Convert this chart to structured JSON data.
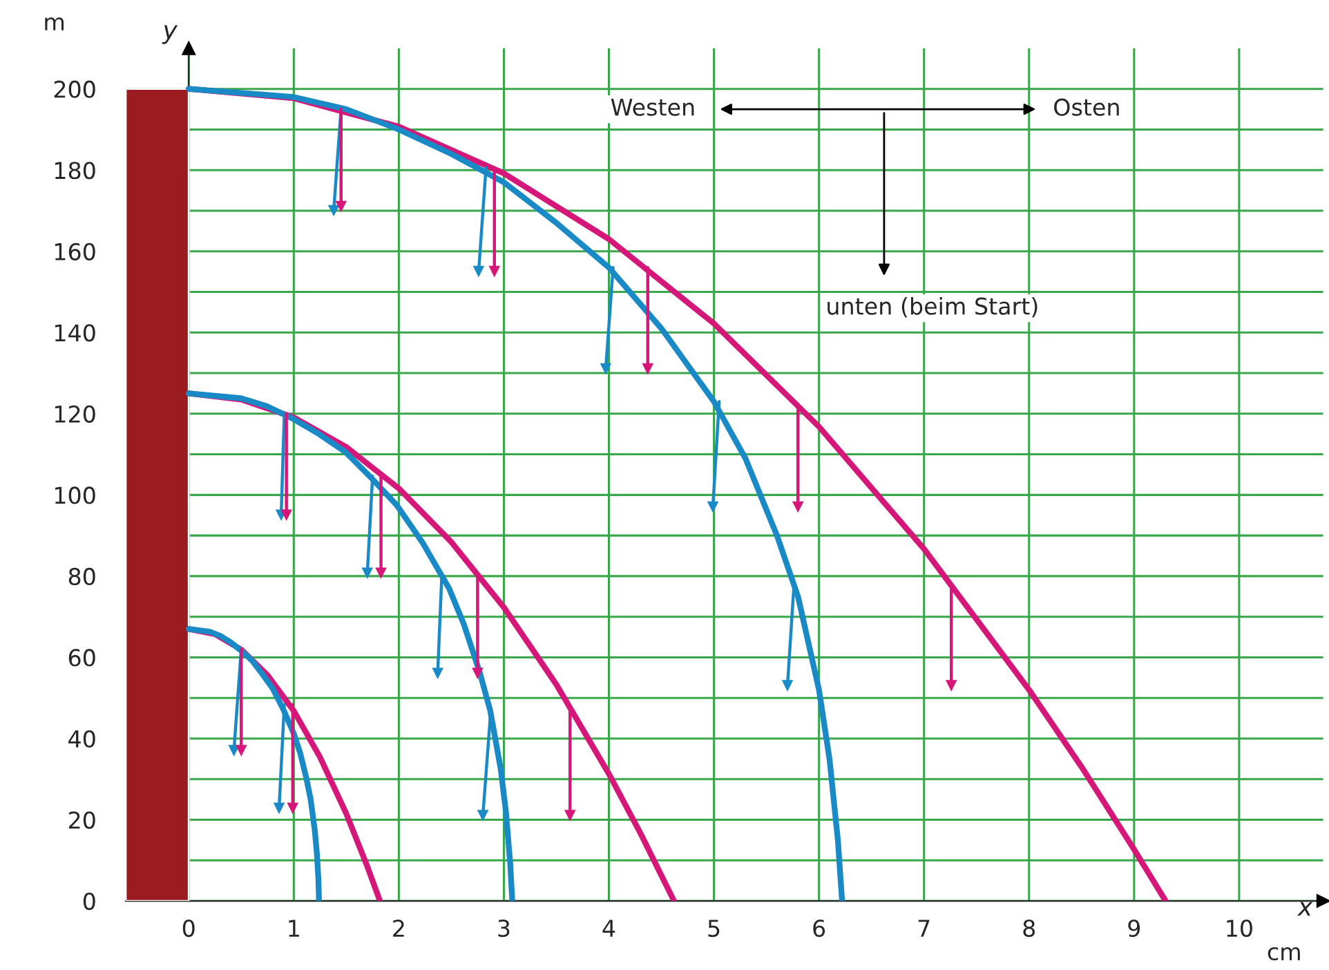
{
  "chart_data": {
    "type": "line",
    "xlabel": "x",
    "ylabel": "y",
    "xlim": [
      -0.6,
      10.8
    ],
    "ylim": [
      0,
      210
    ],
    "xticks": [
      0,
      1,
      2,
      3,
      4,
      5,
      6,
      7,
      8,
      9,
      10
    ],
    "yticks": [
      0,
      {
        "value": 10,
        "label": null
      },
      20,
      {
        "value": 30,
        "label": null
      },
      40,
      {
        "value": 50,
        "label": null
      },
      60,
      {
        "value": 70,
        "label": null
      },
      80,
      {
        "value": 90,
        "label": null
      },
      100,
      {
        "value": 110,
        "label": null
      },
      120,
      {
        "value": 130,
        "label": null
      },
      140,
      {
        "value": 150,
        "label": null
      },
      160,
      {
        "value": 170,
        "label": null
      },
      180,
      {
        "value": 190,
        "label": null
      },
      200
    ],
    "grid": true,
    "annotations": [
      "Westen",
      "Osten",
      "unten (beim Start)",
      "m",
      "cm"
    ],
    "series": [
      {
        "type": "bar",
        "x": [
          -0.3
        ],
        "values": [
          200
        ],
        "color": "#9b1c20"
      },
      {
        "color": "#d6177a",
        "line_style": "solid",
        "x": [
          0,
          1,
          2,
          3,
          4,
          5,
          6,
          7,
          8,
          8.5,
          9,
          9.3
        ],
        "values": [
          200,
          197.7,
          190.7,
          179.2,
          163,
          142.2,
          116.8,
          86.7,
          52,
          33,
          12.7,
          0
        ]
      },
      {
        "color": "#1a8ac6",
        "line_style": "solid",
        "x": [
          0,
          1,
          1.5,
          2,
          2.5,
          3,
          3.5,
          4,
          4.5,
          5,
          5.3,
          5.6,
          5.8,
          6.0,
          6.1,
          6.18,
          6.22
        ],
        "values": [
          200,
          198,
          195,
          190,
          184,
          177,
          167,
          156,
          141,
          123,
          109,
          90,
          75,
          52,
          35,
          15,
          0
        ]
      },
      {
        "color": "#d6177a",
        "line_style": "solid",
        "x": [
          0,
          0.5,
          1,
          1.5,
          2,
          2.5,
          3,
          3.5,
          4,
          4.3,
          4.62
        ],
        "values": [
          125,
          123.5,
          119.1,
          111.8,
          101.6,
          88.4,
          72.3,
          53.3,
          31.3,
          16.7,
          0
        ]
      },
      {
        "color": "#1a8ac6",
        "line_style": "solid",
        "x": [
          0,
          0.5,
          0.74,
          0.99,
          1.24,
          1.49,
          1.73,
          1.98,
          2.23,
          2.48,
          2.62,
          2.77,
          2.87,
          2.97,
          3.02,
          3.06,
          3.08
        ],
        "values": [
          125,
          123.8,
          121.9,
          118.8,
          115,
          110.6,
          104.4,
          97.5,
          88.1,
          76.9,
          68.1,
          56.3,
          46.9,
          32.5,
          21.9,
          9.4,
          0
        ]
      },
      {
        "color": "#d6177a",
        "line_style": "solid",
        "x": [
          0,
          0.25,
          0.5,
          0.75,
          1,
          1.25,
          1.5,
          1.7,
          1.82
        ],
        "values": [
          67,
          65.7,
          61.9,
          55.6,
          46.8,
          35.4,
          21.5,
          8.5,
          0
        ]
      },
      {
        "color": "#1a8ac6",
        "line_style": "solid",
        "x": [
          0,
          0.2,
          0.3,
          0.4,
          0.5,
          0.6,
          0.7,
          0.8,
          0.9,
          1.0,
          1.06,
          1.12,
          1.16,
          1.2,
          1.22,
          1.235,
          1.24
        ],
        "values": [
          67,
          66.3,
          65.3,
          63.7,
          61.6,
          59.3,
          55.9,
          52.3,
          47.2,
          41.2,
          36.5,
          30.2,
          25.1,
          17.4,
          11.7,
          5,
          0
        ]
      },
      {
        "color": "#1a8ac6",
        "marker": "triangle",
        "x": [
          1.45,
          1.38
        ],
        "values": [
          195,
          170
        ]
      },
      {
        "color": "#d6177a",
        "marker": "triangle",
        "x": [
          1.45,
          1.45
        ],
        "values": [
          195,
          171
        ]
      },
      {
        "color": "#1a8ac6",
        "marker": "triangle",
        "x": [
          2.83,
          2.76
        ],
        "values": [
          180.6,
          155
        ]
      },
      {
        "color": "#d6177a",
        "marker": "triangle",
        "x": [
          2.91,
          2.91
        ],
        "values": [
          179.6,
          155
        ]
      },
      {
        "color": "#1a8ac6",
        "marker": "triangle",
        "x": [
          4.04,
          3.97
        ],
        "values": [
          156,
          131
        ]
      },
      {
        "color": "#d6177a",
        "marker": "triangle",
        "x": [
          4.37,
          4.37
        ],
        "values": [
          156,
          131
        ]
      },
      {
        "color": "#1a8ac6",
        "marker": "triangle",
        "x": [
          5.05,
          4.99
        ],
        "values": [
          123,
          97
        ]
      },
      {
        "color": "#d6177a",
        "marker": "triangle",
        "x": [
          5.8,
          5.8
        ],
        "values": [
          121,
          97
        ]
      },
      {
        "color": "#1a8ac6",
        "marker": "triangle",
        "x": [
          5.76,
          5.7
        ],
        "values": [
          77,
          53
        ]
      },
      {
        "color": "#d6177a",
        "marker": "triangle",
        "x": [
          7.26,
          7.26
        ],
        "values": [
          77,
          53
        ]
      },
      {
        "color": "#1a8ac6",
        "marker": "triangle",
        "x": [
          0.91,
          0.88
        ],
        "values": [
          120,
          95
        ]
      },
      {
        "color": "#d6177a",
        "marker": "triangle",
        "x": [
          0.93,
          0.93
        ],
        "values": [
          120,
          95
        ]
      },
      {
        "color": "#1a8ac6",
        "marker": "triangle",
        "x": [
          1.75,
          1.7
        ],
        "values": [
          104.6,
          80.7
        ]
      },
      {
        "color": "#d6177a",
        "marker": "triangle",
        "x": [
          1.83,
          1.83
        ],
        "values": [
          104.6,
          80.7
        ]
      },
      {
        "color": "#1a8ac6",
        "marker": "triangle",
        "x": [
          2.41,
          2.37
        ],
        "values": [
          80.7,
          56
        ]
      },
      {
        "color": "#d6177a",
        "marker": "triangle",
        "x": [
          2.75,
          2.75
        ],
        "values": [
          80.7,
          56
        ]
      },
      {
        "color": "#1a8ac6",
        "marker": "triangle",
        "x": [
          2.87,
          2.8
        ],
        "values": [
          45,
          21
        ]
      },
      {
        "color": "#d6177a",
        "marker": "triangle",
        "x": [
          3.63,
          3.63
        ],
        "values": [
          46.7,
          21
        ]
      },
      {
        "color": "#1a8ac6",
        "marker": "triangle",
        "x": [
          0.5,
          0.43
        ],
        "values": [
          62,
          37
        ]
      },
      {
        "color": "#d6177a",
        "marker": "triangle",
        "x": [
          0.5,
          0.5
        ],
        "values": [
          62,
          37
        ]
      },
      {
        "color": "#1a8ac6",
        "marker": "triangle",
        "x": [
          0.91,
          0.86
        ],
        "values": [
          48.4,
          22.8
        ]
      },
      {
        "color": "#d6177a",
        "marker": "triangle",
        "x": [
          0.99,
          0.99
        ],
        "values": [
          48.4,
          22.8
        ]
      }
    ]
  }
}
